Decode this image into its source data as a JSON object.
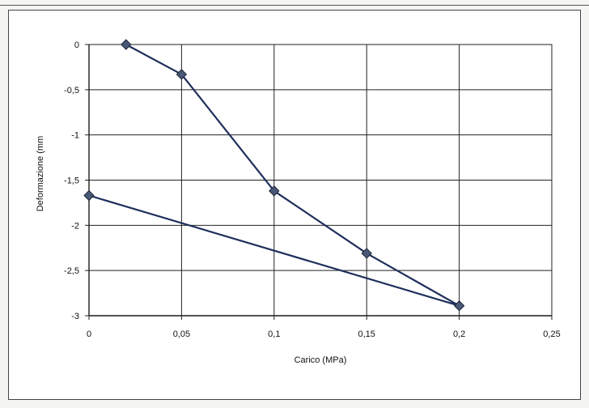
{
  "chart_data": {
    "type": "scatter",
    "xlabel": "Carico (MPa)",
    "ylabel": "Deformazione (mm",
    "xlim": [
      0,
      0.25
    ],
    "ylim": [
      -3,
      0
    ],
    "grid": true,
    "x_ticks": [
      {
        "value": 0,
        "label": "0"
      },
      {
        "value": 0.05,
        "label": "0,05"
      },
      {
        "value": 0.1,
        "label": "0,1"
      },
      {
        "value": 0.15,
        "label": "0,15"
      },
      {
        "value": 0.2,
        "label": "0,2"
      },
      {
        "value": 0.25,
        "label": "0,25"
      }
    ],
    "y_ticks": [
      {
        "value": 0,
        "label": "0"
      },
      {
        "value": -0.5,
        "label": "-0,5"
      },
      {
        "value": -1,
        "label": "-1"
      },
      {
        "value": -1.5,
        "label": "-1,5"
      },
      {
        "value": -2,
        "label": "-2"
      },
      {
        "value": -2.5,
        "label": "-2,5"
      },
      {
        "value": -3,
        "label": "-3"
      }
    ],
    "series": [
      {
        "color": "#1f2f5c",
        "marker_color": "#4a5878",
        "marker": "diamond",
        "points": [
          {
            "x": 0.02,
            "y": 0
          },
          {
            "x": 0.05,
            "y": -0.33
          },
          {
            "x": 0.1,
            "y": -1.62
          },
          {
            "x": 0.15,
            "y": -2.31
          },
          {
            "x": 0.2,
            "y": -2.89
          },
          {
            "x": 0,
            "y": -1.67
          }
        ]
      }
    ]
  }
}
